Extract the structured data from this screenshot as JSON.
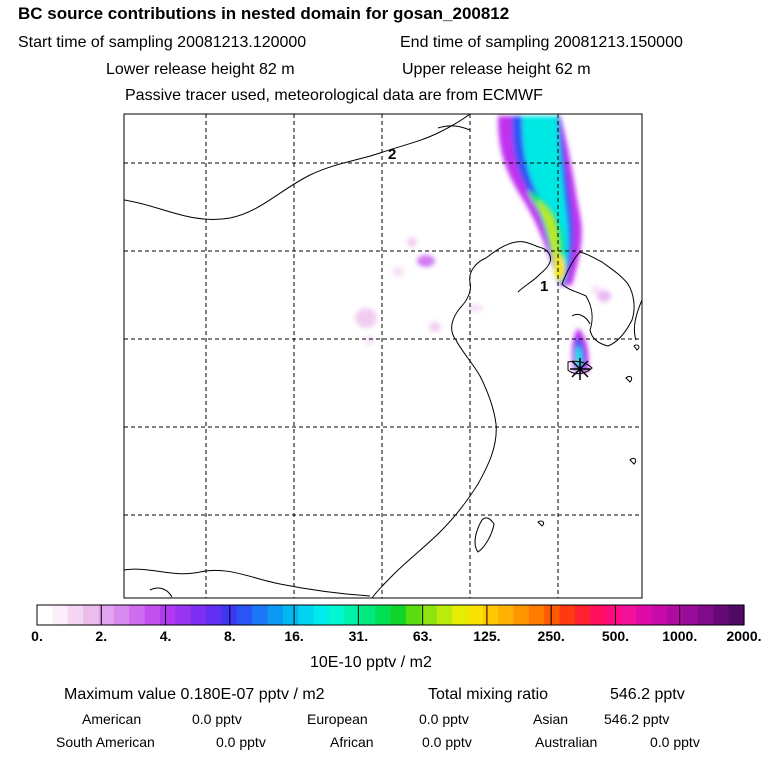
{
  "header": {
    "title": "BC  source contributions in nested domain for gosan_200812",
    "start_label": "Start time of sampling 20081213.120000",
    "end_label": "End time of sampling 20081213.150000",
    "lower_label": "Lower release height   82 m",
    "upper_label": "Upper release height   62 m",
    "tracer_note": "Passive tracer used, meteorological data are from ECMWF"
  },
  "map": {
    "label_1": "1",
    "label_2": "2",
    "colors": {
      "coast": "#000000",
      "grid": "#000000",
      "station": "#000000"
    }
  },
  "colorbar": {
    "ticks": [
      "0.",
      "2.",
      "4.",
      "8.",
      "16.",
      "31.",
      "63.",
      "125.",
      "250.",
      "500.",
      "1000.",
      "2000."
    ],
    "colors": [
      "#ffffff",
      "#fbeffb",
      "#f4d6f4",
      "#ecbdec",
      "#e2a3f0",
      "#d98aef",
      "#cf6df0",
      "#c24ff0",
      "#b238f2",
      "#9a34f3",
      "#7d30f4",
      "#6030f5",
      "#3f35f5",
      "#2a55f6",
      "#1a78f6",
      "#0c99f4",
      "#00b8f2",
      "#00d4ee",
      "#00ecea",
      "#00f7cf",
      "#00f2a8",
      "#00ea7e",
      "#00e055",
      "#10d42a",
      "#5adc10",
      "#8ee40e",
      "#bcea0a",
      "#e4ee05",
      "#fae200",
      "#ffc800",
      "#ffb000",
      "#ff9600",
      "#ff7a00",
      "#ff5a00",
      "#ff3a10",
      "#ff2030",
      "#ff1060",
      "#ff0a80",
      "#f0109a",
      "#df0aa6",
      "#c80aa8",
      "#b00aa2",
      "#980a98",
      "#7f0a8a",
      "#660a78",
      "#500a66"
    ]
  },
  "summary": {
    "unit_label": "10E-10 pptv / m2",
    "max_value": "Maximum value  0.180E-07 pptv / m2",
    "total_label": "Total mixing ratio",
    "total_value": "546.2 pptv",
    "american_label": "American",
    "american_value": "0.0 pptv",
    "european_label": "European",
    "european_value": "0.0 pptv",
    "asian_label": "Asian",
    "asian_value": "546.2 pptv",
    "south_american_label": "South American",
    "south_american_value": "0.0 pptv",
    "african_label": "African",
    "african_value": "0.0 pptv",
    "australian_label": "Australian",
    "australian_value": "0.0 pptv"
  }
}
